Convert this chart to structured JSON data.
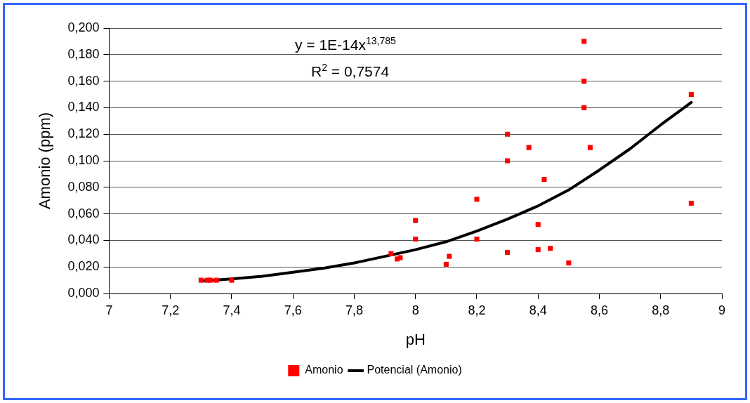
{
  "chart_data": {
    "type": "scatter",
    "xlabel": "pH",
    "ylabel": "Amonio (ppm)",
    "xlim": [
      7,
      9
    ],
    "xticks": [
      7,
      {
        "value": 7.2,
        "label": "7,2"
      },
      {
        "value": 7.4,
        "label": "7,4"
      },
      {
        "value": 7.6,
        "label": "7,6"
      },
      {
        "value": 7.8,
        "label": "7,8"
      },
      8,
      {
        "value": 8.2,
        "label": "8,2"
      },
      {
        "value": 8.4,
        "label": "8,4"
      },
      {
        "value": 8.6,
        "label": "8,6"
      },
      {
        "value": 8.8,
        "label": "8,8"
      },
      9
    ],
    "ylim": [
      0,
      0.2
    ],
    "yticks": [
      {
        "value": 0,
        "label": "0,000"
      },
      {
        "value": 0.02,
        "label": "0,020"
      },
      {
        "value": 0.04,
        "label": "0,040"
      },
      {
        "value": 0.06,
        "label": "0,060"
      },
      {
        "value": 0.08,
        "label": "0,080"
      },
      {
        "value": 0.1,
        "label": "0,100"
      },
      {
        "value": 0.12,
        "label": "0,120"
      },
      {
        "value": 0.14,
        "label": "0,140"
      },
      {
        "value": 0.16,
        "label": "0,160"
      },
      {
        "value": 0.18,
        "label": "0,180"
      },
      {
        "value": 0.2,
        "label": "0,200"
      }
    ],
    "grid": "y",
    "legend": "bottom",
    "annotations": [
      "y = 1E-14x$^{13,785}$",
      "R$^{2}$ = 0,7574"
    ],
    "series": [
      {
        "name": "Amonio",
        "marker": "square",
        "color": "#ff0000",
        "x": [
          7.3,
          7.32,
          7.33,
          7.35,
          7.4,
          7.92,
          7.94,
          7.95,
          8.0,
          8.0,
          8.1,
          8.11,
          8.2,
          8.2,
          8.3,
          8.3,
          8.3,
          8.37,
          8.4,
          8.4,
          8.42,
          8.44,
          8.5,
          8.55,
          8.55,
          8.55,
          8.57,
          8.9,
          8.9
        ],
        "values": [
          0.01,
          0.01,
          0.01,
          0.01,
          0.01,
          0.03,
          0.026,
          0.027,
          0.055,
          0.041,
          0.022,
          0.028,
          0.071,
          0.041,
          0.12,
          0.1,
          0.031,
          0.11,
          0.052,
          0.033,
          0.086,
          0.034,
          0.023,
          0.19,
          0.16,
          0.14,
          0.11,
          0.15,
          0.068
        ]
      },
      {
        "name": "Potencial (Amonio)",
        "type": "line",
        "marker": "none",
        "line_style": "solid",
        "color": "#000000",
        "x": [
          7.3,
          7.4,
          7.5,
          7.6,
          7.7,
          7.8,
          7.9,
          8.0,
          8.1,
          8.2,
          8.3,
          8.4,
          8.5,
          8.6,
          8.7,
          8.8,
          8.9
        ],
        "values": [
          0.0094,
          0.011,
          0.013,
          0.016,
          0.019,
          0.023,
          0.028,
          0.033,
          0.039,
          0.047,
          0.056,
          0.066,
          0.078,
          0.093,
          0.109,
          0.127,
          0.144
        ]
      }
    ]
  }
}
